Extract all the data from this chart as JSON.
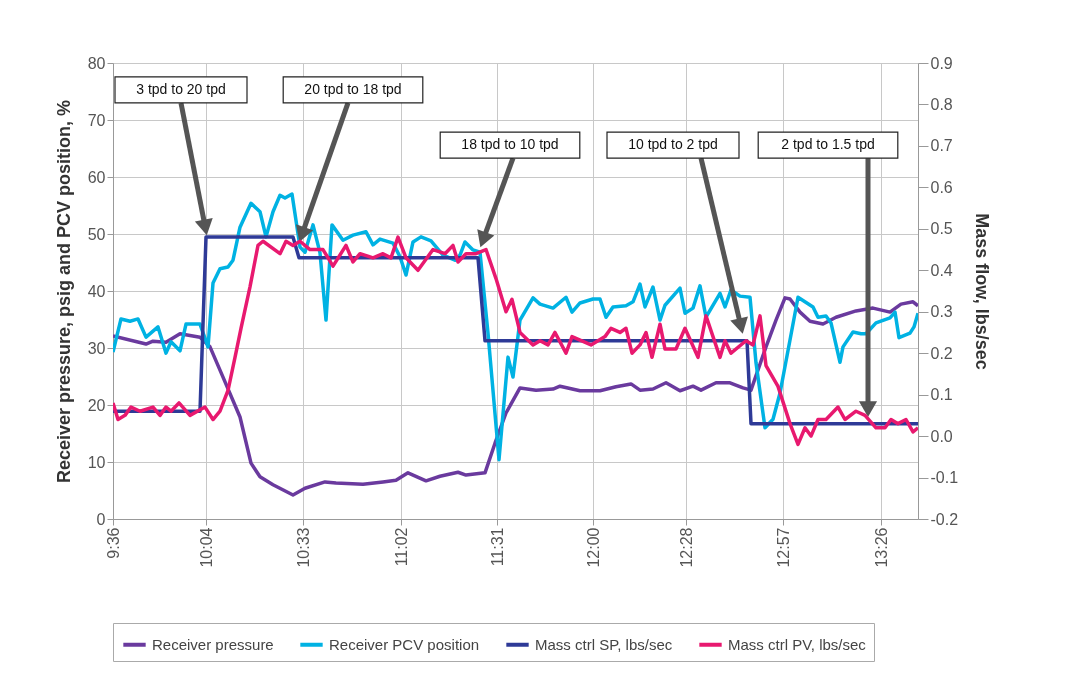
{
  "chart_data": {
    "type": "line",
    "xlim": [
      9.6,
      13.625
    ],
    "xticks": [
      {
        "value": 9.6,
        "label": "9:36"
      },
      {
        "value": 10.0667,
        "label": "10:04"
      },
      {
        "value": 10.55,
        "label": "10:33"
      },
      {
        "value": 11.04,
        "label": "11:02"
      },
      {
        "value": 11.52,
        "label": "11:31"
      },
      {
        "value": 12.0,
        "label": "12:00"
      },
      {
        "value": 12.4667,
        "label": "12:28"
      },
      {
        "value": 12.95,
        "label": "12:57"
      },
      {
        "value": 13.44,
        "label": "13:26"
      }
    ],
    "ylim": [
      0,
      80
    ],
    "yticks": [
      0,
      10,
      20,
      30,
      40,
      50,
      60,
      70,
      80
    ],
    "y2lim": [
      -0.2,
      0.9
    ],
    "y2ticks": [
      -0.2,
      -0.1,
      {
        "value": 0,
        "label": "0.0"
      },
      0.1,
      0.2,
      0.3,
      0.4,
      0.5,
      0.6,
      0.7,
      0.8,
      0.9
    ],
    "ylabel": "Receiver pressure, psig and PCV position, %",
    "y2label": "Mass flow, lbs/sec",
    "grid": true,
    "legend": "bottom",
    "annotations": [
      "3 tpd to 20 tpd",
      "20 tpd to 18 tpd",
      "18 tpd to 10 tpd",
      "10 tpd to 2 tpd",
      "2 tpd to 1.5 tpd"
    ],
    "series": [
      {
        "name": "Receiver pressure",
        "color": "#6a3a9e",
        "x": [
          9.6,
          9.765,
          9.8,
          9.865,
          9.935,
          10.035,
          10.085,
          10.15,
          10.235,
          10.29,
          10.335,
          10.4,
          10.5,
          10.56,
          10.66,
          10.715,
          10.85,
          10.95,
          11.015,
          11.075,
          11.165,
          11.235,
          11.325,
          11.365,
          11.46,
          11.51,
          11.565,
          11.635,
          11.715,
          11.8,
          11.835,
          11.935,
          12.035,
          12.115,
          12.19,
          12.235,
          12.3,
          12.365,
          12.435,
          12.5,
          12.54,
          12.615,
          12.685,
          12.75,
          12.79,
          12.865,
          12.915,
          12.96,
          12.985,
          13.035,
          13.085,
          13.15,
          13.215,
          13.315,
          13.4,
          13.485,
          13.54,
          13.6,
          13.625
        ],
        "values": [
          32.1,
          30.7,
          31.2,
          31.0,
          32.5,
          31.9,
          30.2,
          24.9,
          17.9,
          9.8,
          7.4,
          6.0,
          4.2,
          5.4,
          6.5,
          6.3,
          6.1,
          6.5,
          6.8,
          8.1,
          6.7,
          7.5,
          8.2,
          7.7,
          8.1,
          13.3,
          18.6,
          23.0,
          22.6,
          22.8,
          23.3,
          22.5,
          22.5,
          23.2,
          23.7,
          22.6,
          22.8,
          23.9,
          22.5,
          23.3,
          22.6,
          23.9,
          23.9,
          23.0,
          22.6,
          30.2,
          34.9,
          38.8,
          38.6,
          36.3,
          34.7,
          34.2,
          35.4,
          36.5,
          37.0,
          36.3,
          37.7,
          38.1,
          37.4
        ]
      },
      {
        "name": "Receiver PCV position",
        "color": "#00b2e3",
        "x": [
          9.6,
          9.64,
          9.685,
          9.725,
          9.765,
          9.825,
          9.865,
          9.89,
          9.935,
          9.965,
          10.035,
          10.075,
          10.1,
          10.135,
          10.175,
          10.2,
          10.235,
          10.29,
          10.335,
          10.365,
          10.4,
          10.435,
          10.46,
          10.495,
          10.535,
          10.56,
          10.6,
          10.635,
          10.665,
          10.695,
          10.75,
          10.8,
          10.865,
          10.9,
          10.935,
          11.0,
          11.035,
          11.065,
          11.1,
          11.14,
          11.19,
          11.25,
          11.31,
          11.335,
          11.36,
          11.4,
          11.435,
          11.475,
          11.53,
          11.575,
          11.6,
          11.635,
          11.7,
          11.735,
          11.8,
          11.865,
          11.895,
          11.935,
          12.0,
          12.035,
          12.065,
          12.1,
          12.165,
          12.2,
          12.235,
          12.26,
          12.3,
          12.335,
          12.36,
          12.435,
          12.46,
          12.5,
          12.535,
          12.565,
          12.635,
          12.66,
          12.69,
          12.735,
          12.785,
          12.815,
          12.86,
          12.9,
          12.935,
          12.985,
          13.025,
          13.1,
          13.125,
          13.165,
          13.19,
          13.235,
          13.25,
          13.3,
          13.34,
          13.365,
          13.415,
          13.485,
          13.51,
          13.53,
          13.585,
          13.605,
          13.625
        ],
        "values": [
          29.3,
          35.1,
          34.7,
          35.1,
          31.9,
          33.7,
          29.1,
          31.1,
          29.5,
          34.2,
          34.2,
          30.2,
          41.4,
          43.9,
          44.2,
          45.4,
          51.2,
          55.4,
          53.9,
          49.5,
          53.9,
          56.8,
          56.3,
          57.0,
          47.7,
          46.8,
          51.6,
          46.7,
          34.9,
          51.6,
          48.9,
          49.8,
          50.4,
          48.1,
          49.1,
          48.4,
          46.0,
          42.8,
          48.6,
          49.5,
          48.8,
          46.3,
          45.4,
          46.3,
          48.6,
          47.2,
          46.8,
          32.6,
          10.4,
          28.4,
          24.9,
          34.9,
          38.8,
          37.7,
          37.0,
          38.9,
          36.3,
          37.9,
          38.6,
          38.6,
          35.4,
          37.2,
          37.4,
          38.1,
          41.2,
          37.2,
          40.7,
          34.9,
          37.5,
          40.5,
          36.1,
          37.0,
          40.9,
          35.4,
          39.6,
          37.2,
          40.2,
          39.1,
          38.9,
          27.4,
          16.0,
          17.5,
          22.1,
          31.4,
          38.9,
          37.2,
          35.4,
          35.6,
          34.4,
          27.5,
          30.2,
          32.8,
          32.5,
          32.5,
          34.4,
          35.3,
          36.3,
          31.8,
          32.6,
          33.7,
          36.1
        ]
      },
      {
        "name": "Mass ctrl SP, lbs/sec",
        "color": "#2e3a97",
        "axis": "y2",
        "x": [
          9.6,
          10.035,
          10.065,
          10.5,
          10.53,
          11.425,
          11.46,
          12.77,
          12.79,
          13.625
        ],
        "values": [
          0.06,
          0.06,
          0.48,
          0.48,
          0.43,
          0.43,
          0.23,
          0.23,
          0.03,
          0.03
        ]
      },
      {
        "name": "Mass ctrl PV, lbs/sec",
        "color": "#e8196f",
        "axis": "y2",
        "x": [
          9.6,
          9.625,
          9.66,
          9.69,
          9.735,
          9.8,
          9.835,
          9.865,
          9.89,
          9.93,
          9.985,
          10.06,
          10.1,
          10.135,
          10.175,
          10.21,
          10.24,
          10.285,
          10.325,
          10.35,
          10.435,
          10.465,
          10.5,
          10.535,
          10.585,
          10.65,
          10.7,
          10.765,
          10.8,
          10.835,
          10.9,
          10.95,
          10.99,
          11.025,
          11.065,
          11.125,
          11.2,
          11.26,
          11.3,
          11.325,
          11.365,
          11.415,
          11.465,
          11.515,
          11.565,
          11.595,
          11.635,
          11.7,
          11.735,
          11.775,
          11.81,
          11.865,
          11.895,
          11.99,
          12.06,
          12.09,
          12.135,
          12.165,
          12.195,
          12.235,
          12.265,
          12.295,
          12.335,
          12.36,
          12.415,
          12.46,
          12.525,
          12.565,
          12.635,
          12.66,
          12.69,
          12.765,
          12.8,
          12.835,
          12.865,
          12.925,
          12.985,
          13.025,
          13.06,
          13.09,
          13.125,
          13.165,
          13.225,
          13.26,
          13.315,
          13.36,
          13.415,
          13.46,
          13.49,
          13.525,
          13.565,
          13.6,
          13.625
        ],
        "values": [
          0.08,
          0.04,
          0.05,
          0.07,
          0.06,
          0.07,
          0.05,
          0.07,
          0.06,
          0.08,
          0.05,
          0.07,
          0.04,
          0.06,
          0.11,
          0.19,
          0.26,
          0.36,
          0.46,
          0.47,
          0.44,
          0.47,
          0.46,
          0.47,
          0.45,
          0.45,
          0.41,
          0.46,
          0.42,
          0.44,
          0.43,
          0.44,
          0.43,
          0.48,
          0.43,
          0.4,
          0.45,
          0.44,
          0.46,
          0.42,
          0.44,
          0.44,
          0.45,
          0.38,
          0.3,
          0.33,
          0.25,
          0.22,
          0.23,
          0.22,
          0.25,
          0.2,
          0.24,
          0.22,
          0.24,
          0.26,
          0.25,
          0.26,
          0.2,
          0.22,
          0.25,
          0.19,
          0.27,
          0.21,
          0.21,
          0.26,
          0.19,
          0.29,
          0.19,
          0.23,
          0.2,
          0.23,
          0.22,
          0.29,
          0.17,
          0.12,
          0.03,
          -0.02,
          0.02,
          0.0,
          0.04,
          0.04,
          0.07,
          0.04,
          0.06,
          0.05,
          0.02,
          0.02,
          0.04,
          0.03,
          0.04,
          0.01,
          0.02
        ]
      }
    ]
  }
}
